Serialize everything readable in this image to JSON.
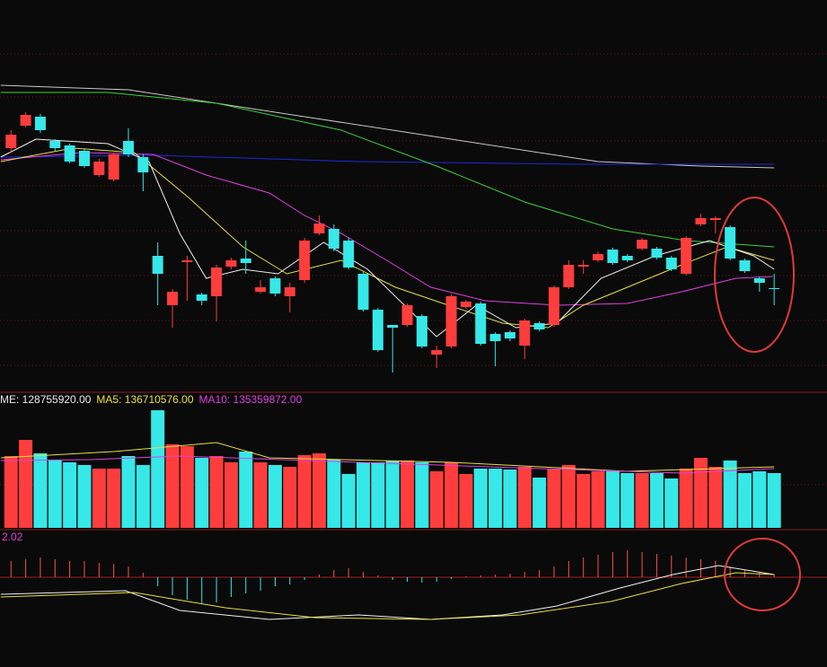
{
  "chart_data": [
    {
      "type": "candlestick",
      "up_color": "#ff3d3d",
      "down_color": "#36e8e8",
      "xlim": [
        -0.75,
        55.6
      ],
      "ylim": [
        1.3,
        45
      ],
      "open": [
        28.5,
        31.0,
        32.0,
        29.3,
        28.8,
        28.2,
        25.5,
        25.0,
        29.3,
        27.5,
        16.5,
        11.0,
        15.8,
        12.2,
        12.0,
        15.3,
        16.2,
        12.5,
        14.0,
        12.0,
        13.8,
        19.0,
        19.5,
        18.2,
        14.5,
        10.5,
        8.8,
        8.8,
        9.8,
        5.5,
        6.4,
        10.8,
        11.2,
        7.8,
        8.0,
        6.5,
        9.0,
        8.8,
        13.0,
        15.3,
        16.0,
        17.2,
        16.5,
        17.3,
        17.3,
        16.3,
        14.5,
        20.0,
        20.5,
        19.7,
        16.0,
        14.0,
        12.9
      ],
      "high": [
        30.5,
        32.5,
        32.3,
        29.5,
        29.0,
        28.5,
        27.3,
        28.0,
        30.7,
        27.8,
        18.0,
        12.8,
        16.5,
        12.4,
        15.5,
        16.3,
        18.2,
        13.8,
        14.2,
        13.5,
        18.5,
        21.0,
        20.0,
        18.5,
        14.7,
        10.7,
        8.8,
        11.2,
        10.0,
        6.5,
        12.2,
        11.6,
        11.4,
        8.0,
        8.2,
        9.5,
        9.2,
        13.2,
        16.0,
        16.0,
        17.0,
        17.4,
        16.7,
        18.5,
        17.5,
        16.5,
        18.7,
        21.2,
        20.9,
        19.9,
        16.2,
        14.2,
        14.5
      ],
      "low": [
        28.0,
        30.8,
        30.2,
        28.2,
        26.8,
        26.3,
        25.3,
        24.8,
        27.5,
        23.7,
        11.0,
        8.5,
        11.5,
        11.0,
        9.2,
        15.0,
        14.5,
        12.3,
        12.0,
        10.2,
        13.5,
        18.8,
        17.0,
        15.0,
        10.3,
        5.8,
        3.5,
        8.6,
        6.2,
        4.0,
        6.2,
        10.6,
        6.5,
        4.2,
        7.0,
        5.0,
        8.1,
        8.6,
        12.8,
        14.5,
        15.8,
        15.5,
        15.8,
        17.1,
        16.1,
        14.8,
        14.3,
        19.8,
        19.0,
        16.0,
        14.6,
        12.5,
        11.0
      ],
      "close": [
        30.0,
        32.2,
        30.5,
        28.5,
        27.0,
        26.5,
        27.0,
        27.8,
        27.8,
        25.8,
        14.5,
        12.5,
        16.0,
        11.5,
        15.2,
        16.0,
        15.7,
        13.0,
        12.3,
        13.0,
        18.2,
        20.1,
        17.3,
        15.2,
        10.5,
        6.0,
        8.5,
        11.0,
        6.4,
        6.0,
        12.0,
        11.4,
        6.7,
        7.0,
        7.3,
        9.3,
        8.3,
        13.0,
        15.5,
        15.5,
        16.7,
        15.7,
        16.0,
        18.3,
        16.3,
        15.0,
        18.5,
        20.7,
        20.7,
        16.2,
        14.8,
        13.5,
        12.8
      ],
      "lines": [
        {
          "color": "#c8c8c8",
          "x": [
            -0.7,
            8,
            20,
            30,
            40,
            47,
            52
          ],
          "values": [
            35.5,
            35.0,
            32.0,
            29.5,
            27.0,
            26.5,
            26.3
          ]
        },
        {
          "color": "#1a2bd8",
          "x": [
            -0.7,
            9.7,
            23.7,
            39,
            52
          ],
          "values": [
            27.5,
            27.7,
            27.0,
            26.7,
            26.7
          ]
        },
        {
          "color": "#3cd23c",
          "x": [
            -0.7,
            6.6,
            14,
            22.5,
            29,
            35,
            41,
            46,
            52
          ],
          "values": [
            34.7,
            34.7,
            33.5,
            30.5,
            26.5,
            22.5,
            19.5,
            18.2,
            17.5
          ]
        },
        {
          "color": "#e040e0",
          "x": [
            -0.7,
            4.8,
            9.7,
            13.3,
            17.6,
            20,
            22.5,
            25.6,
            28.6,
            32.3,
            37.2,
            42,
            45.7,
            49.4,
            51.9
          ],
          "values": [
            27.2,
            28,
            27.8,
            25.5,
            23.5,
            21,
            19,
            16,
            13,
            11.5,
            11,
            11.2,
            12.5,
            14,
            14.2
          ]
        },
        {
          "color": "#e8e040",
          "x": [
            -0.7,
            4.2,
            8.4,
            12.1,
            15.8,
            18.8,
            22.5,
            26.2,
            29.8,
            33.5,
            36.6,
            39,
            42,
            45.7,
            48.8,
            52
          ],
          "values": [
            27,
            28.5,
            28,
            23,
            17.5,
            14.5,
            16,
            13,
            11,
            9,
            8.5,
            11,
            13,
            15.5,
            17.5,
            16
          ]
        },
        {
          "color": "#f0f0f0",
          "x": [
            -0.7,
            1.7,
            6.6,
            9.4,
            11.5,
            13.3,
            15.8,
            18.2,
            21.3,
            24.3,
            29,
            31.7,
            34.4,
            37.2,
            40.2,
            43.9,
            47.6,
            50.6,
            52
          ],
          "values": [
            27.5,
            29.5,
            29,
            27,
            19,
            14,
            15,
            14.5,
            18,
            15,
            7.5,
            11,
            8.5,
            9,
            14,
            16.5,
            18.2,
            16.5,
            15
          ]
        }
      ]
    },
    {
      "type": "volume",
      "legend": [
        {
          "text": "ME: 128755920.00",
          "color": "#e8e8e8"
        },
        {
          "text": "MA5: 136710576.00",
          "color": "#e8e040"
        },
        {
          "text": "MA10: 135359872.00",
          "color": "#e040e0"
        }
      ],
      "xlim": [
        -0.75,
        55.6
      ],
      "ylim": [
        0,
        296000000
      ],
      "values": [
        160000000,
        196000000,
        166000000,
        152000000,
        146000000,
        140000000,
        132000000,
        132000000,
        160000000,
        140000000,
        262000000,
        186000000,
        182000000,
        156000000,
        160000000,
        146000000,
        170000000,
        146000000,
        140000000,
        136000000,
        162000000,
        166000000,
        152000000,
        120000000,
        146000000,
        146000000,
        150000000,
        150000000,
        146000000,
        126000000,
        146000000,
        120000000,
        132000000,
        132000000,
        130000000,
        136000000,
        112000000,
        132000000,
        140000000,
        120000000,
        126000000,
        126000000,
        122000000,
        122000000,
        122000000,
        110000000,
        132000000,
        156000000,
        136000000,
        150000000,
        122000000,
        126000000,
        122000000
      ],
      "lines": [
        {
          "color": "#e8e040",
          "x": [
            -0.7,
            7,
            14,
            17.6,
            30,
            42,
            52
          ],
          "values": [
            156000000,
            170000000,
            190000000,
            156000000,
            146000000,
            126000000,
            136000000
          ]
        },
        {
          "color": "#e040e0",
          "x": [
            -0.7,
            5.4,
            11.5,
            23.7,
            36,
            45.7,
            52
          ],
          "values": [
            150000000,
            152000000,
            160000000,
            146000000,
            132000000,
            122000000,
            132000000
          ]
        }
      ]
    },
    {
      "type": "macd",
      "label": "2.02",
      "label_color": "#e040e0",
      "up_color": "#ff5050",
      "down_color": "#36e8e8",
      "xlim": [
        -0.75,
        55.6
      ],
      "ylim": [
        -10,
        5.1
      ],
      "values": [
        1.8,
        2.0,
        2.2,
        2.0,
        1.8,
        1.8,
        1.6,
        1.5,
        1.2,
        0.5,
        -1.0,
        -2.0,
        -2.5,
        -3.0,
        -2.8,
        -2.2,
        -1.8,
        -1.5,
        -1.0,
        -0.8,
        -0.3,
        0.3,
        0.8,
        1.0,
        0.6,
        0.2,
        -0.3,
        -0.5,
        -0.6,
        -0.5,
        -0.2,
        0.1,
        0.2,
        0.3,
        0.4,
        0.6,
        0.8,
        1.2,
        1.8,
        2.2,
        2.5,
        2.8,
        3.0,
        2.8,
        2.6,
        2.4,
        2.2,
        2.0,
        1.8,
        1.2,
        0.8,
        0.5,
        0.3
      ],
      "lines": [
        {
          "color": "#f0f0f0",
          "x": [
            -0.7,
            7.8,
            11.5,
            17.6,
            23.7,
            28.6,
            33.5,
            37.2,
            41.5,
            45.1,
            48.2,
            52
          ],
          "values": [
            -1.9,
            -1.5,
            -3.7,
            -4.7,
            -4.2,
            -4.7,
            -4.2,
            -3.2,
            -1.2,
            0.3,
            1.3,
            0.3
          ]
        },
        {
          "color": "#e8e040",
          "x": [
            -0.7,
            8.4,
            14.6,
            20.7,
            28.6,
            34.7,
            40.9,
            45.7,
            49.4,
            52
          ],
          "values": [
            -2.2,
            -1.7,
            -3.4,
            -4.5,
            -4.7,
            -4.2,
            -2.7,
            -0.7,
            0.5,
            0.3
          ]
        }
      ]
    }
  ]
}
